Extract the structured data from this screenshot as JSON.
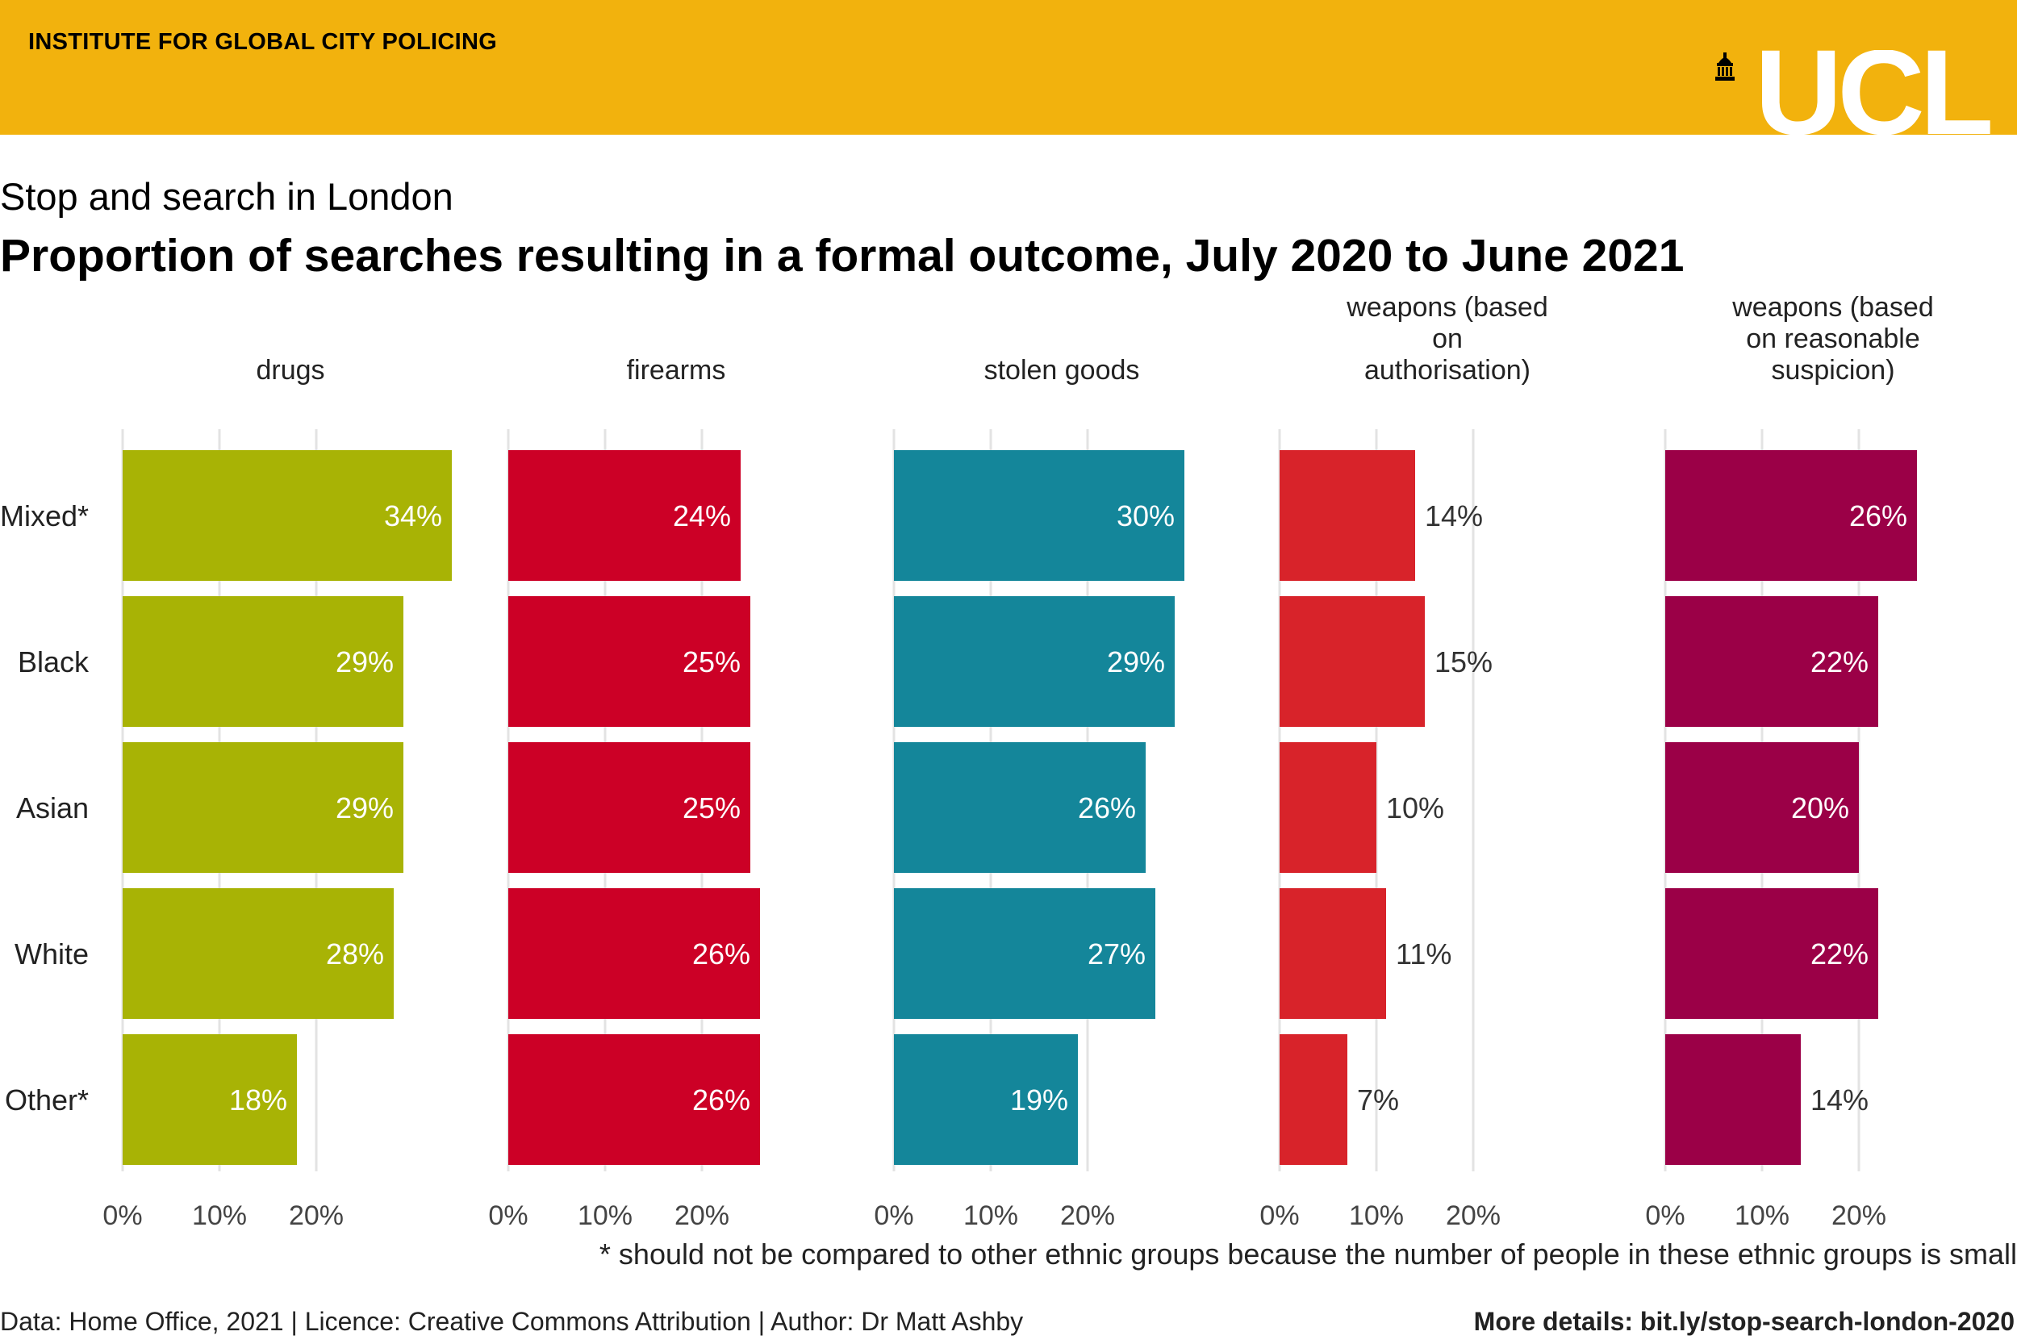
{
  "header": {
    "institute": "INSTITUTE FOR GLOBAL CITY POLICING",
    "logo_text": "UCL"
  },
  "subtitle": "Stop and search in London",
  "title": "Proportion of searches resulting in a formal outcome, July 2020 to June 2021",
  "footnote": "* should not be compared to other ethnic groups because the number of people in these ethnic groups is small",
  "source": "Data: Home Office, 2021 | Licence: Creative Commons Attribution | Author: Dr Matt Ashby",
  "details": "More details: bit.ly/stop-search-london-2020",
  "colors": {
    "banner": "#f2b20d"
  },
  "chart_data": {
    "type": "bar",
    "orientation": "horizontal",
    "categories": [
      "Mixed*",
      "Black",
      "Asian",
      "White",
      "Other*"
    ],
    "xlim": [
      0,
      0.35
    ],
    "x_ticks": [
      "0%",
      "10%",
      "20%"
    ],
    "grid": true,
    "panels": [
      {
        "name": "drugs",
        "title_lines": [
          "drugs"
        ],
        "color": "#a8b305",
        "values": [
          34,
          29,
          29,
          28,
          18
        ],
        "labels": [
          "34%",
          "29%",
          "29%",
          "28%",
          "18%"
        ]
      },
      {
        "name": "firearms",
        "title_lines": [
          "firearms"
        ],
        "color": "#cc0026",
        "values": [
          24,
          25,
          25,
          26,
          26
        ],
        "labels": [
          "24%",
          "25%",
          "25%",
          "26%",
          "26%"
        ]
      },
      {
        "name": "stolen goods",
        "title_lines": [
          "stolen goods"
        ],
        "color": "#14869a",
        "values": [
          30,
          29,
          26,
          27,
          19
        ],
        "labels": [
          "30%",
          "29%",
          "26%",
          "27%",
          "19%"
        ]
      },
      {
        "name": "weapons (based on authorisation)",
        "title_lines": [
          "weapons (based",
          "on",
          "authorisation)"
        ],
        "color": "#d8232a",
        "values": [
          14,
          15,
          10,
          11,
          7
        ],
        "labels": [
          "14%",
          "15%",
          "10%",
          "11%",
          "7%"
        ]
      },
      {
        "name": "weapons (based on reasonable suspicion)",
        "title_lines": [
          "weapons (based",
          "on reasonable",
          "suspicion)"
        ],
        "color": "#9b0047",
        "values": [
          26,
          22,
          20,
          22,
          14
        ],
        "labels": [
          "26%",
          "22%",
          "20%",
          "22%",
          "14%"
        ]
      }
    ]
  }
}
